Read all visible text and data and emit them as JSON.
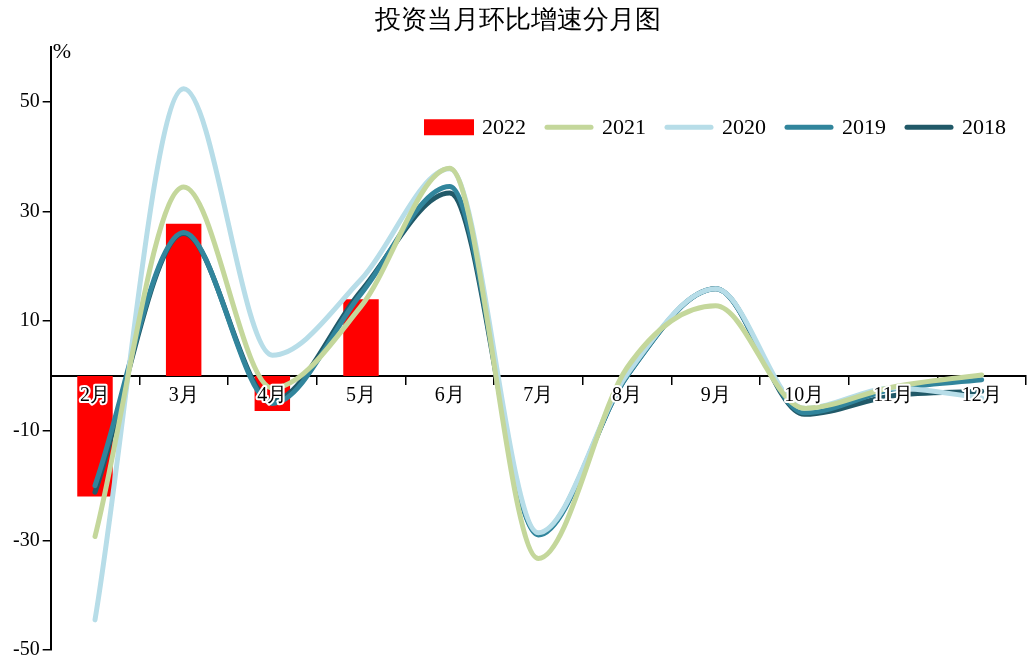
{
  "chart_data": {
    "type": "line",
    "title": "投资当月环比增速分月图",
    "ylabel": "%",
    "categories": [
      "2月",
      "3月",
      "4月",
      "5月",
      "6月",
      "7月",
      "8月",
      "9月",
      "10月",
      "11月",
      "12月"
    ],
    "series": [
      {
        "name": "2022",
        "type": "bar",
        "color": "#ff0000",
        "values": [
          -22,
          27.8,
          -6.4,
          14,
          null,
          null,
          null,
          null,
          null,
          null,
          null
        ]
      },
      {
        "name": "2021",
        "color": "#c4d79b",
        "values": [
          -29.3,
          34.5,
          -2.2,
          12.7,
          37.9,
          -33.3,
          1.5,
          12.8,
          -5.9,
          -2,
          0.2
        ]
      },
      {
        "name": "2020",
        "color": "#b7dde8",
        "values": [
          -44.5,
          52.4,
          3.8,
          17.6,
          37.8,
          -28.6,
          0.3,
          15.9,
          -5.9,
          -2.2,
          -4
        ]
      },
      {
        "name": "2019",
        "color": "#31859c",
        "values": [
          -20,
          26.2,
          -5,
          15,
          34.6,
          -29,
          0,
          15.9,
          -6.7,
          -2.4,
          -0.7
        ]
      },
      {
        "name": "2018",
        "color": "#215968",
        "values": [
          -21.2,
          26,
          -4.5,
          15.5,
          33.4,
          -28.8,
          0,
          15.9,
          -7,
          -3.6,
          -2.8
        ]
      }
    ],
    "ylim": [
      -50,
      60
    ],
    "yticks": [
      -50,
      -30,
      -10,
      10,
      30,
      50
    ],
    "grid": false,
    "legend": "top right",
    "marker": "none"
  }
}
